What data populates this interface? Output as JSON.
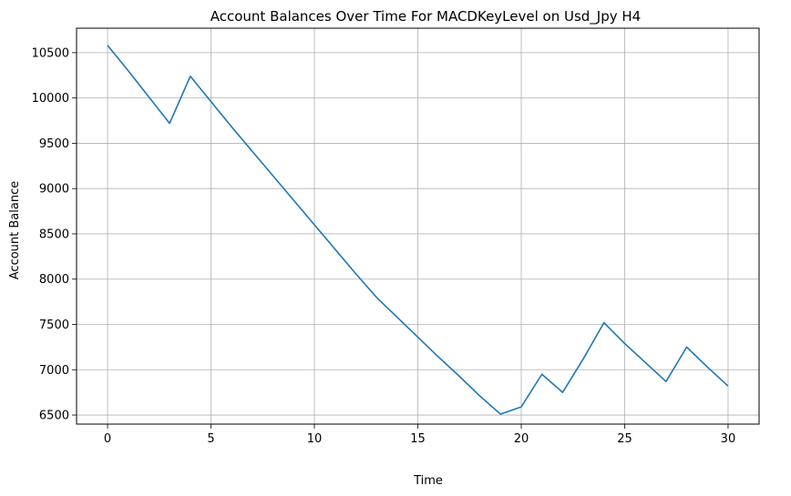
{
  "chart_data": {
    "type": "line",
    "title": "Account Balances Over Time For MACDKeyLevel on Usd_Jpy H4",
    "xlabel": "Time",
    "ylabel": "Account Balance",
    "xlim": [
      -1.5,
      31.5
    ],
    "ylim": [
      6400,
      10770
    ],
    "x_ticks": [
      0,
      5,
      10,
      15,
      20,
      25,
      30
    ],
    "y_ticks": [
      6500,
      7000,
      7500,
      8000,
      8500,
      9000,
      9500,
      10000,
      10500
    ],
    "grid": true,
    "line_color": "#1f77b4",
    "series": [
      {
        "x": [
          0,
          1,
          2,
          3,
          4,
          5,
          6,
          7,
          8,
          9,
          10,
          11,
          12,
          13,
          14,
          15,
          16,
          17,
          18,
          19,
          20,
          21,
          22,
          23,
          24,
          25,
          26,
          27,
          28,
          29,
          30
        ],
        "values": [
          10580,
          10300,
          10010,
          9720,
          10240,
          9960,
          9680,
          9410,
          9140,
          8870,
          8600,
          8330,
          8060,
          7800,
          7580,
          7360,
          7140,
          6930,
          6710,
          6510,
          6590,
          6950,
          6750,
          7120,
          7520,
          7290,
          7080,
          6870,
          7250,
          7030,
          6820
        ]
      }
    ]
  }
}
